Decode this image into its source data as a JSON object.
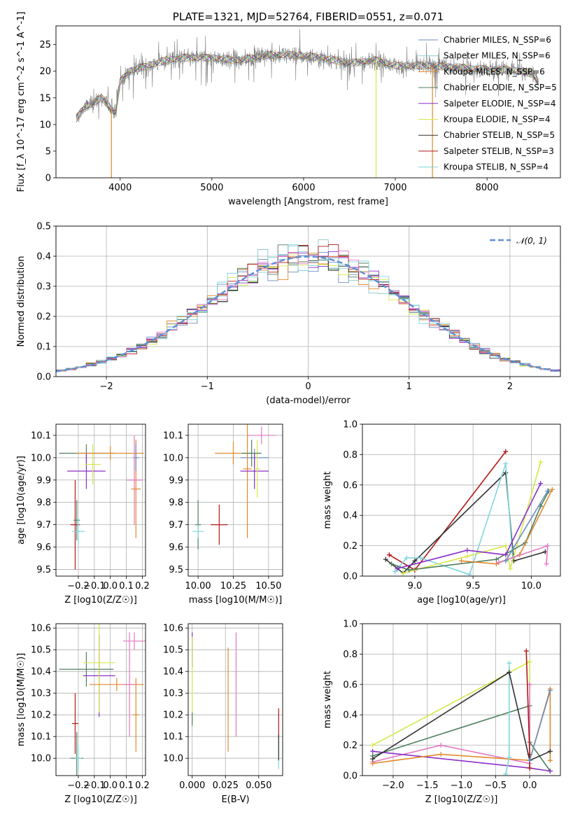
{
  "chart_data": [
    {
      "id": "spectrum",
      "type": "line",
      "title": "PLATE=1321, MJD=52764, FIBERID=0551, z=0.071",
      "xlabel": "wavelength [Angstrom, rest frame]",
      "ylabel": "Flux [f_λ 10^-17 erg cm^-2 s^-1 A^-1]",
      "xlim": [
        3300,
        8800
      ],
      "ylim": [
        0,
        28.5
      ],
      "xticks": [
        4000,
        5000,
        6000,
        7000,
        8000
      ],
      "yticks": [
        0,
        5,
        10,
        15,
        20,
        25
      ],
      "grid": false,
      "legend_position": "top-right",
      "legend": [
        {
          "name": "Chabrier MILES, N_SSP=6",
          "color": "#6c8ebf"
        },
        {
          "name": "Salpeter MILES, N_SSP=6",
          "color": "#87c9c9"
        },
        {
          "name": "Kroupa MILES, N_SSP=6",
          "color": "#e08a2c"
        },
        {
          "name": "Chabrier ELODIE, N_SSP=5",
          "color": "#4f7f5f"
        },
        {
          "name": "Salpeter ELODIE, N_SSP=4",
          "color": "#8b2fc9"
        },
        {
          "name": "Kroupa ELODIE, N_SSP=4",
          "color": "#d6e84a"
        },
        {
          "name": "Chabrier STELIB, N_SSP=5",
          "color": "#333333"
        },
        {
          "name": "Salpeter STELIB, N_SSP=3",
          "color": "#b01818"
        },
        {
          "name": "Kroupa STELIB, N_SSP=4",
          "color": "#7fd6dc"
        }
      ],
      "data_color": "#808080",
      "continuum": [
        [
          3520,
          11
        ],
        [
          3600,
          13
        ],
        [
          3700,
          14
        ],
        [
          3800,
          15
        ],
        [
          3900,
          13
        ],
        [
          3950,
          12
        ],
        [
          4000,
          18
        ],
        [
          4100,
          20
        ],
        [
          4300,
          21
        ],
        [
          4500,
          22
        ],
        [
          4700,
          22.5
        ],
        [
          5000,
          22.5
        ],
        [
          5300,
          22
        ],
        [
          5600,
          23
        ],
        [
          5900,
          23
        ],
        [
          6200,
          22.5
        ],
        [
          6500,
          21.5
        ],
        [
          6800,
          22
        ],
        [
          7000,
          21
        ],
        [
          7300,
          21
        ],
        [
          7600,
          20.8
        ],
        [
          7800,
          20.5
        ],
        [
          8000,
          20.3
        ],
        [
          8300,
          20.2
        ],
        [
          8500,
          19.5
        ],
        [
          8560,
          18
        ]
      ],
      "dips": [
        {
          "x": 3905,
          "color": "#e08a2c"
        },
        {
          "x": 6790,
          "color": "#d6e84a"
        },
        {
          "x": 7405,
          "color": "#e08a2c"
        }
      ]
    },
    {
      "id": "residuals",
      "type": "histogram",
      "xlabel": "(data-model)/error",
      "ylabel": "Normed distribution",
      "xlim": [
        -2.5,
        2.5
      ],
      "ylim": [
        0,
        0.5
      ],
      "xticks": [
        -2,
        -1,
        0,
        1,
        2
      ],
      "yticks": [
        0,
        0.1,
        0.2,
        0.3,
        0.4,
        0.5
      ],
      "grid": true,
      "legend_position": "top-right",
      "reference": {
        "name": "𝒩(0, 1)",
        "color": "#5b8fd6",
        "style": "dashed"
      },
      "bin_width": 0.1
    },
    {
      "id": "age_vs_Z",
      "type": "errorbar",
      "xlabel": "Z [log10(Z/Z☉)]",
      "ylabel": "age [log10(age/yr)]",
      "xlim": [
        -0.34,
        0.22
      ],
      "ylim": [
        9.47,
        10.15
      ],
      "xticks": [
        -0.2,
        -0.1,
        0.0,
        0.1,
        0.2
      ],
      "yticks": [
        9.5,
        9.6,
        9.7,
        9.8,
        9.9,
        10.0,
        10.1
      ],
      "grid": true,
      "points": [
        {
          "x": -0.22,
          "y": 9.7,
          "xerr": 0.03,
          "yerr": 0.2,
          "color": "#b01818"
        },
        {
          "x": -0.21,
          "y": 9.72,
          "xerr": 0.02,
          "yerr": 0.09,
          "color": "#4f7f5f"
        },
        {
          "x": -0.2,
          "y": 9.67,
          "xerr": 0.04,
          "yerr": 0.06,
          "color": "#7fd6dc"
        },
        {
          "x": -0.15,
          "y": 10.02,
          "xerr": 0.17,
          "yerr": 0.04,
          "color": "#4f7f5f"
        },
        {
          "x": -0.15,
          "y": 9.94,
          "xerr": 0.12,
          "yerr": 0.08,
          "color": "#8b2fc9"
        },
        {
          "x": -0.11,
          "y": 9.97,
          "xerr": 0.05,
          "yerr": 0.09,
          "color": "#d6e84a"
        },
        {
          "x": 0.0,
          "y": 10.02,
          "xerr": 0.21,
          "yerr": 0.03,
          "color": "#e08a2c"
        },
        {
          "x": 0.16,
          "y": 9.86,
          "xerr": 0.03,
          "yerr": 0.22,
          "color": "#e08a2c"
        },
        {
          "x": 0.16,
          "y": 10.0,
          "xerr": 0.02,
          "yerr": 0.06,
          "color": "#6c8ebf"
        },
        {
          "x": 0.15,
          "y": 9.9,
          "xerr": 0.05,
          "yerr": 0.2,
          "color": "#e377c2"
        }
      ]
    },
    {
      "id": "age_vs_mass",
      "type": "errorbar",
      "xlabel": "mass [log10(M/M☉)]",
      "ylabel": "",
      "xlim": [
        9.93,
        10.6
      ],
      "ylim": [
        9.47,
        10.15
      ],
      "xticks": [
        10.0,
        10.25,
        10.5
      ],
      "yticks": [
        9.5,
        9.6,
        9.7,
        9.8,
        9.9,
        10.0,
        10.1
      ],
      "grid": true,
      "points": [
        {
          "x": 10.15,
          "y": 9.7,
          "xerr": 0.06,
          "yerr": 0.09,
          "color": "#b01818"
        },
        {
          "x": 10.0,
          "y": 9.7,
          "xerr": 0.02,
          "yerr": 0.11,
          "color": "#4f7f5f"
        },
        {
          "x": 10.0,
          "y": 9.67,
          "xerr": 0.04,
          "yerr": 0.03,
          "color": "#7fd6dc"
        },
        {
          "x": 10.25,
          "y": 10.02,
          "xerr": 0.13,
          "yerr": 0.05,
          "color": "#e08a2c"
        },
        {
          "x": 10.4,
          "y": 10.0,
          "xerr": 0.1,
          "yerr": 0.04,
          "color": "#6c8ebf"
        },
        {
          "x": 10.35,
          "y": 9.95,
          "xerr": 0.03,
          "yerr": 0.31,
          "color": "#e08a2c"
        },
        {
          "x": 10.4,
          "y": 9.94,
          "xerr": 0.1,
          "yerr": 0.08,
          "color": "#8b2fc9"
        },
        {
          "x": 10.42,
          "y": 9.95,
          "xerr": 0.02,
          "yerr": 0.13,
          "color": "#d6e84a"
        },
        {
          "x": 10.38,
          "y": 10.02,
          "xerr": 0.07,
          "yerr": 0.06,
          "color": "#4f7f5f"
        },
        {
          "x": 10.45,
          "y": 10.1,
          "xerr": 0.1,
          "yerr": 0.04,
          "color": "#e377c2"
        }
      ]
    },
    {
      "id": "mass_weight_vs_age",
      "type": "line",
      "xlabel": "age [log10(age/yr)]",
      "ylabel": "mass weight",
      "xlim": [
        8.55,
        10.25
      ],
      "ylim": [
        0,
        1.0
      ],
      "xticks": [
        9.0,
        9.5,
        10.0
      ],
      "yticks": [
        0.0,
        0.2,
        0.4,
        0.6,
        0.8,
        1.0
      ],
      "grid": true,
      "series": [
        {
          "color": "#b01818",
          "points": [
            [
              8.78,
              0.14
            ],
            [
              9.0,
              0.04
            ],
            [
              9.78,
              0.82
            ]
          ]
        },
        {
          "color": "#333333",
          "points": [
            [
              8.75,
              0.11
            ],
            [
              8.9,
              0.02
            ],
            [
              9.0,
              0.1
            ],
            [
              9.78,
              0.68
            ],
            [
              9.85,
              0.1
            ],
            [
              10.12,
              0.16
            ]
          ]
        },
        {
          "color": "#7fd6dc",
          "points": [
            [
              8.83,
              0.03
            ],
            [
              8.93,
              0.12
            ],
            [
              9.05,
              0.12
            ],
            [
              9.47,
              0.01
            ],
            [
              9.78,
              0.74
            ],
            [
              9.84,
              0.12
            ]
          ]
        },
        {
          "color": "#d6e84a",
          "points": [
            [
              8.9,
              0.02
            ],
            [
              9.45,
              0.13
            ],
            [
              9.78,
              0.2
            ],
            [
              9.82,
              0.05
            ],
            [
              10.08,
              0.75
            ]
          ]
        },
        {
          "color": "#4f7f5f",
          "points": [
            [
              8.8,
              0.08
            ],
            [
              8.95,
              0.04
            ],
            [
              9.7,
              0.11
            ],
            [
              9.95,
              0.22
            ],
            [
              10.08,
              0.46
            ],
            [
              10.15,
              0.56
            ]
          ]
        },
        {
          "color": "#8b2fc9",
          "points": [
            [
              8.85,
              0.05
            ],
            [
              9.45,
              0.17
            ],
            [
              9.78,
              0.14
            ],
            [
              10.08,
              0.61
            ]
          ]
        },
        {
          "color": "#e08a2c",
          "points": [
            [
              9.4,
              0.1
            ],
            [
              9.7,
              0.08
            ],
            [
              9.9,
              0.14
            ],
            [
              10.18,
              0.57
            ]
          ]
        },
        {
          "color": "#e377c2",
          "points": [
            [
              9.72,
              0.09
            ],
            [
              10.14,
              0.2
            ],
            [
              10.13,
              0.08
            ]
          ]
        },
        {
          "color": "#6c8ebf",
          "points": [
            [
              9.78,
              0.1
            ],
            [
              10.14,
              0.56
            ]
          ]
        }
      ]
    },
    {
      "id": "mass_vs_Z",
      "type": "errorbar",
      "xlabel": "Z [log10(Z/Z☉)]",
      "ylabel": "mass [log10(M/M☉)]",
      "xlim": [
        -0.34,
        0.22
      ],
      "ylim": [
        9.92,
        10.62
      ],
      "xticks": [
        -0.2,
        -0.1,
        0.0,
        0.1,
        0.2
      ],
      "yticks": [
        10.0,
        10.1,
        10.2,
        10.3,
        10.4,
        10.5,
        10.6
      ],
      "grid": true,
      "points": [
        {
          "x": -0.22,
          "y": 10.16,
          "xerr": 0.02,
          "yerr": 0.14,
          "color": "#b01818"
        },
        {
          "x": -0.21,
          "y": 10.0,
          "xerr": 0.04,
          "yerr": 0.12,
          "color": "#4f7f5f"
        },
        {
          "x": -0.2,
          "y": 10.0,
          "xerr": 0.02,
          "yerr": 0.06,
          "color": "#7fd6dc"
        },
        {
          "x": -0.15,
          "y": 10.41,
          "xerr": 0.17,
          "yerr": 0.08,
          "color": "#4f7f5f"
        },
        {
          "x": -0.07,
          "y": 10.38,
          "xerr": 0.1,
          "yerr": 0.19,
          "color": "#8b2fc9"
        },
        {
          "x": -0.07,
          "y": 10.44,
          "xerr": 0.1,
          "yerr": 0.23,
          "color": "#d6e84a"
        },
        {
          "x": 0.04,
          "y": 10.34,
          "xerr": 0.17,
          "yerr": 0.03,
          "color": "#e08a2c"
        },
        {
          "x": 0.12,
          "y": 10.34,
          "xerr": 0.05,
          "yerr": 0.24,
          "color": "#e377c2"
        },
        {
          "x": 0.15,
          "y": 10.54,
          "xerr": 0.07,
          "yerr": 0.04,
          "color": "#e377c2"
        },
        {
          "x": 0.16,
          "y": 10.2,
          "xerr": 0.02,
          "yerr": 0.17,
          "color": "#e08a2c"
        }
      ]
    },
    {
      "id": "mass_vs_ebv",
      "type": "errorbar",
      "xlabel": "E(B-V)",
      "ylabel": "",
      "xlim": [
        -0.003,
        0.068
      ],
      "ylim": [
        9.92,
        10.62
      ],
      "xticks": [
        0.0,
        0.025,
        0.05
      ],
      "yticks": [
        10.0,
        10.1,
        10.2,
        10.3,
        10.4,
        10.5,
        10.6
      ],
      "grid": true,
      "points": [
        {
          "x": 0.0,
          "y": 10.5,
          "xerr": 0,
          "yerr": 0.08,
          "color": "#8b2fc9"
        },
        {
          "x": 0.0,
          "y": 10.36,
          "xerr": 0,
          "yerr": 0.2,
          "color": "#d6e84a"
        },
        {
          "x": 0.0,
          "y": 10.18,
          "xerr": 0,
          "yerr": 0.03,
          "color": "#4f7f5f"
        },
        {
          "x": 0.027,
          "y": 10.27,
          "xerr": 0,
          "yerr": 0.24,
          "color": "#e08a2c"
        },
        {
          "x": 0.033,
          "y": 10.34,
          "xerr": 0,
          "yerr": 0.24,
          "color": "#e377c2"
        },
        {
          "x": 0.065,
          "y": 10.16,
          "xerr": 0,
          "yerr": 0.07,
          "color": "#b01818"
        },
        {
          "x": 0.065,
          "y": 10.03,
          "xerr": 0,
          "yerr": 0.08,
          "color": "#7fd6dc"
        },
        {
          "x": 0.065,
          "y": 10.05,
          "xerr": 0,
          "yerr": 0.06,
          "color": "#333333"
        }
      ]
    },
    {
      "id": "mass_weight_vs_Z",
      "type": "line",
      "xlabel": "Z [log10(Z/Z☉)]",
      "ylabel": "mass weight",
      "xlim": [
        -2.45,
        0.45
      ],
      "ylim": [
        0,
        1.0
      ],
      "xticks": [
        -2.0,
        -1.5,
        -1.0,
        -0.5,
        0.0
      ],
      "yticks": [
        0.0,
        0.2,
        0.4,
        0.6,
        0.8,
        1.0
      ],
      "grid": true,
      "series": [
        {
          "color": "#d6e84a",
          "points": [
            [
              -2.3,
              0.2
            ],
            [
              0.0,
              0.75
            ],
            [
              0.0,
              0.05
            ],
            [
              0.3,
              0.03
            ]
          ]
        },
        {
          "color": "#4f7f5f",
          "points": [
            [
              -2.3,
              0.13
            ],
            [
              0.0,
              0.46
            ],
            [
              0.0,
              0.22
            ],
            [
              0.3,
              0.03
            ]
          ]
        },
        {
          "color": "#e377c2",
          "points": [
            [
              -2.3,
              0.09
            ],
            [
              -1.3,
              0.2
            ],
            [
              0.0,
              0.08
            ],
            [
              0.0,
              0.6
            ]
          ]
        },
        {
          "color": "#8b2fc9",
          "points": [
            [
              -2.3,
              0.16
            ],
            [
              0.0,
              0.05
            ],
            [
              0.3,
              0.03
            ]
          ]
        },
        {
          "color": "#e08a2c",
          "points": [
            [
              -2.3,
              0.08
            ],
            [
              -1.3,
              0.14
            ],
            [
              0.0,
              0.1
            ],
            [
              0.3,
              0.57
            ],
            [
              0.3,
              0.1
            ]
          ]
        },
        {
          "color": "#b01818",
          "points": [
            [
              -0.05,
              0.82
            ],
            [
              0.0,
              0.14
            ],
            [
              0.0,
              0.05
            ]
          ]
        },
        {
          "color": "#7fd6dc",
          "points": [
            [
              -0.3,
              0.74
            ],
            [
              -0.3,
              0.12
            ],
            [
              -0.35,
              0.01
            ]
          ]
        },
        {
          "color": "#333333",
          "points": [
            [
              -2.3,
              0.11
            ],
            [
              -0.3,
              0.68
            ],
            [
              0.0,
              0.1
            ],
            [
              0.3,
              0.16
            ]
          ]
        },
        {
          "color": "#6c8ebf",
          "points": [
            [
              0.0,
              0.1
            ],
            [
              0.3,
              0.56
            ]
          ]
        }
      ]
    }
  ]
}
